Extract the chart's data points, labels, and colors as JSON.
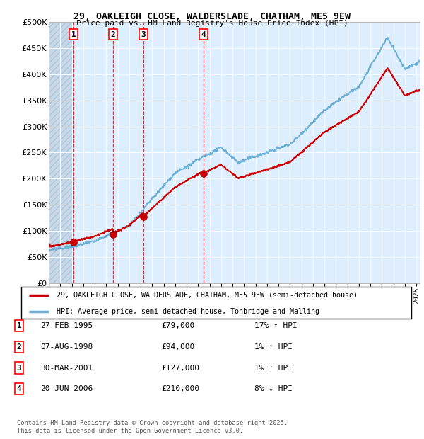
{
  "title": "29, OAKLEIGH CLOSE, WALDERSLADE, CHATHAM, ME5 9EW",
  "subtitle": "Price paid vs. HM Land Registry's House Price Index (HPI)",
  "sale_dates_num": [
    1995.15,
    1998.6,
    2001.25,
    2006.47
  ],
  "sale_prices": [
    79000,
    94000,
    127000,
    210000
  ],
  "sale_labels": [
    "1",
    "2",
    "3",
    "4"
  ],
  "legend_line1": "29, OAKLEIGH CLOSE, WALDERSLADE, CHATHAM, ME5 9EW (semi-detached house)",
  "legend_line2": "HPI: Average price, semi-detached house, Tonbridge and Malling",
  "table_data": [
    [
      "1",
      "27-FEB-1995",
      "£79,000",
      "17% ↑ HPI"
    ],
    [
      "2",
      "07-AUG-1998",
      "£94,000",
      "1% ↑ HPI"
    ],
    [
      "3",
      "30-MAR-2001",
      "£127,000",
      "1% ↑ HPI"
    ],
    [
      "4",
      "20-JUN-2006",
      "£210,000",
      "8% ↓ HPI"
    ]
  ],
  "footnote": "Contains HM Land Registry data © Crown copyright and database right 2025.\nThis data is licensed under the Open Government Licence v3.0.",
  "hpi_line_color": "#6baed6",
  "price_line_color": "#cc0000",
  "background_plot": "#ddeeff",
  "hatch_color": "#c8d8e8",
  "ylim": [
    0,
    500000
  ],
  "yticks": [
    0,
    50000,
    100000,
    150000,
    200000,
    250000,
    300000,
    350000,
    400000,
    450000,
    500000
  ],
  "xlim_start": 1993,
  "xlim_end": 2025.3
}
